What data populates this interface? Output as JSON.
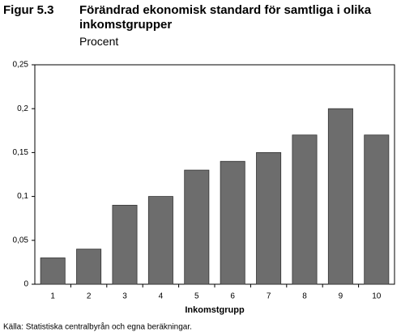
{
  "chart_data": {
    "type": "bar",
    "figure_label": "Figur 5.3",
    "title": "Förändrad ekonomisk standard för samtliga i olika inkomstgrupper",
    "subtitle": "Procent",
    "x_label": "Inkomstgrupp",
    "source": "Källa: Statistiska centralbyrån och egna beräkningar.",
    "categories": [
      "1",
      "2",
      "3",
      "4",
      "5",
      "6",
      "7",
      "8",
      "9",
      "10"
    ],
    "values": [
      0.03,
      0.04,
      0.09,
      0.1,
      0.13,
      0.14,
      0.15,
      0.17,
      0.2,
      0.17
    ],
    "color": "#6d6d6d",
    "ylim": [
      0,
      0.25
    ],
    "yticks": [
      0,
      {
        "value": 0.05,
        "label": "0,05"
      },
      {
        "value": 0.1,
        "label": "0,1"
      },
      {
        "value": 0.15,
        "label": "0,15"
      },
      {
        "value": 0.2,
        "label": "0,2"
      },
      {
        "value": 0.25,
        "label": "0,25"
      }
    ],
    "grid": false
  }
}
